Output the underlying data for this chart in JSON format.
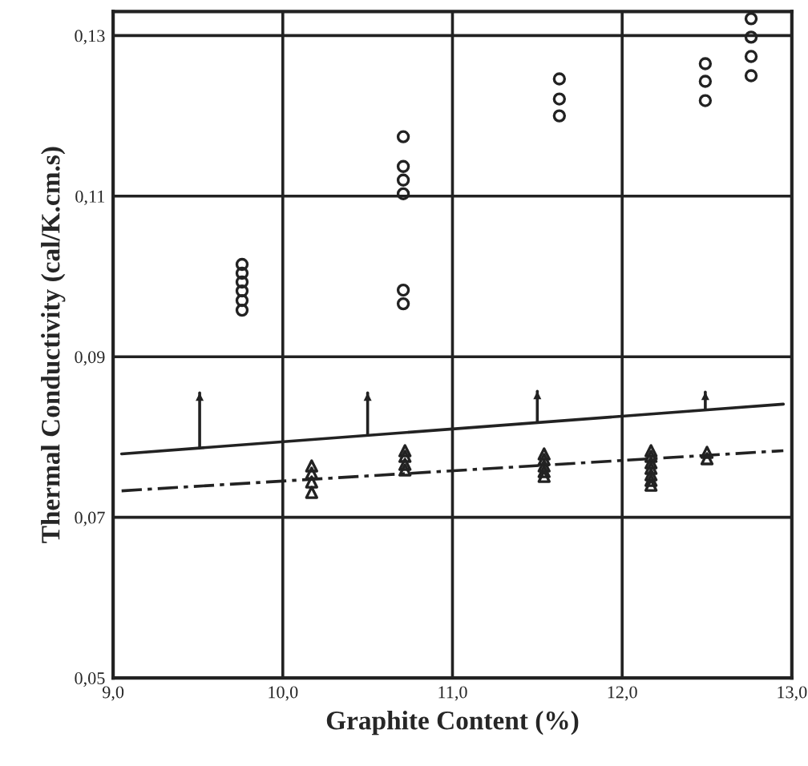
{
  "chart_data": {
    "type": "scatter",
    "xlabel": "Graphite Content (%)",
    "ylabel": "Thermal Conductivity (cal/K.cm.s)",
    "xlim": [
      9.0,
      13.0
    ],
    "ylim": [
      0.05,
      0.133
    ],
    "xticks": [
      {
        "value": 9,
        "label": "9,0"
      },
      {
        "value": 10,
        "label": "10,0"
      },
      {
        "value": 11,
        "label": "11,0"
      },
      {
        "value": 12,
        "label": "12,0"
      },
      {
        "value": 13,
        "label": "13,0"
      }
    ],
    "yticks": [
      {
        "value": 0.05,
        "label": "0,05"
      },
      {
        "value": 0.07,
        "label": "0,07"
      },
      {
        "value": 0.09,
        "label": "0,09"
      },
      {
        "value": 0.11,
        "label": "0,11"
      },
      {
        "value": 0.13,
        "label": "0,13"
      }
    ],
    "grid": true,
    "legend": false,
    "series": [
      {
        "marker": "circle",
        "color": "#222222",
        "x": [
          9.76,
          9.76,
          9.76,
          9.76,
          9.76,
          9.76,
          10.71,
          10.71,
          10.71,
          10.71,
          10.71,
          10.71,
          11.63,
          11.63,
          11.63,
          12.49,
          12.49,
          12.49,
          12.76,
          12.76,
          12.76,
          12.76
        ],
        "values": [
          0.1015,
          0.1004,
          0.0993,
          0.0982,
          0.097,
          0.0958,
          0.1174,
          0.1137,
          0.112,
          0.1103,
          0.0983,
          0.0966,
          0.1246,
          0.1221,
          0.12,
          0.1265,
          0.1243,
          0.1219,
          0.1321,
          0.1298,
          0.1274,
          0.125
        ]
      },
      {
        "type": "scatter",
        "marker": "triangle",
        "color": "#222222",
        "x": [
          10.17,
          10.17,
          10.17,
          10.17,
          10.72,
          10.72,
          10.72,
          10.72,
          11.54,
          11.54,
          11.54,
          11.54,
          11.54,
          12.17,
          12.17,
          12.17,
          12.17,
          12.17,
          12.17,
          12.17,
          12.5,
          12.5
        ],
        "values": [
          0.0764,
          0.0755,
          0.0744,
          0.0731,
          0.0783,
          0.0776,
          0.0766,
          0.0759,
          0.0779,
          0.0772,
          0.0764,
          0.0757,
          0.0751,
          0.0783,
          0.0776,
          0.0768,
          0.0761,
          0.0753,
          0.0746,
          0.074,
          0.0781,
          0.0773
        ]
      },
      {
        "type": "line",
        "line_style": "solid",
        "color": "#222222",
        "x": [
          9.05,
          12.95
        ],
        "values": [
          0.0779,
          0.0841
        ]
      },
      {
        "type": "line",
        "line_style": "dashdot",
        "color": "#222222",
        "x": [
          9.05,
          12.95
        ],
        "values": [
          0.0733,
          0.0783
        ]
      },
      {
        "type": "line",
        "line_style": "solid",
        "color": "#222222",
        "x": [
          9.51,
          9.51
        ],
        "values": [
          0.0787,
          0.0855
        ]
      },
      {
        "type": "line",
        "line_style": "solid",
        "color": "#222222",
        "x": [
          10.5,
          10.5
        ],
        "values": [
          0.0803,
          0.0855
        ]
      },
      {
        "type": "line",
        "line_style": "solid",
        "color": "#222222",
        "x": [
          11.5,
          11.5
        ],
        "values": [
          0.0819,
          0.0857
        ]
      },
      {
        "type": "line",
        "line_style": "solid",
        "color": "#222222",
        "x": [
          12.49,
          12.49
        ],
        "values": [
          0.0835,
          0.0856
        ]
      }
    ]
  }
}
